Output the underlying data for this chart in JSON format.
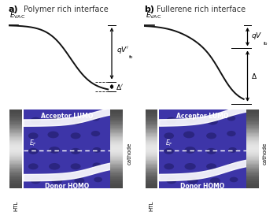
{
  "fig_width": 3.52,
  "fig_height": 2.78,
  "dpi": 100,
  "panel_a_title": "Polymer rich interface",
  "panel_b_title": "Fullerene rich interface",
  "label_a": "a)",
  "label_b": "b)",
  "acceptor_lumo": "Acceptor LUMO",
  "donor_homo": "Donor HOMO",
  "cathode_label": "cathode",
  "htl_label": "HTL",
  "purple_bg": "#3d35a8",
  "purple_dark_ellipse": "#2b2580",
  "curve_color": "#111111",
  "white": "#ffffff"
}
